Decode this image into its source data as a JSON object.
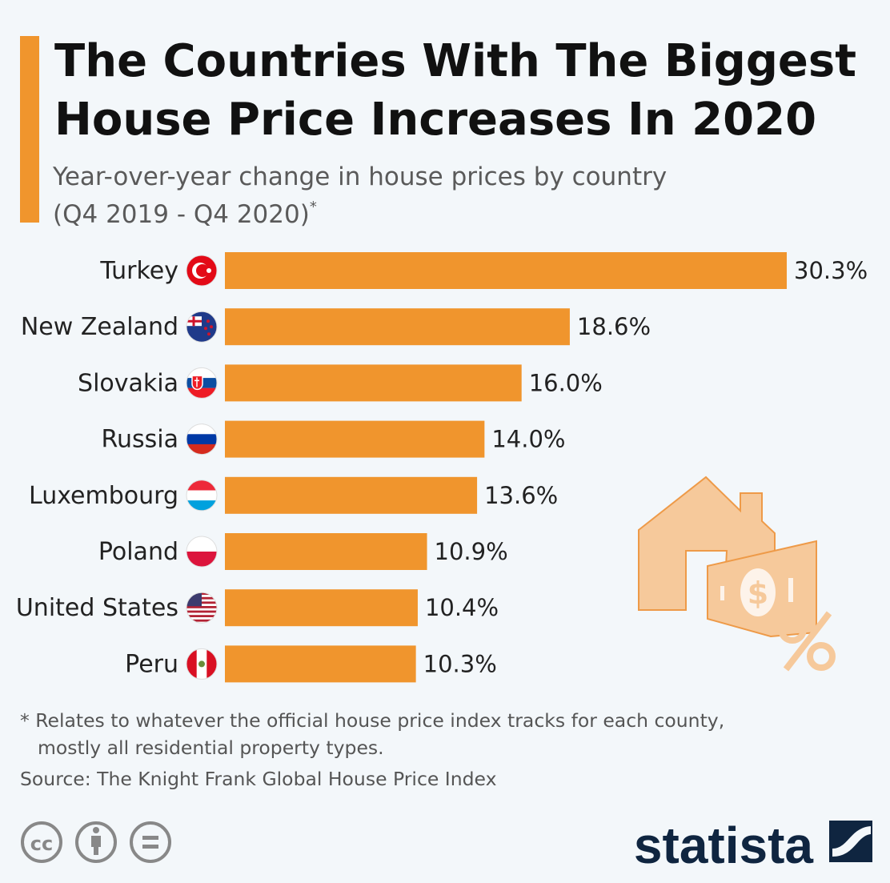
{
  "header": {
    "title_line1": "The Countries With The Biggest",
    "title_line2": "House Price Increases In 2020",
    "subtitle_line1": "Year-over-year change in house prices by country",
    "subtitle_line2": "(Q4 2019 - Q4 2020)",
    "subtitle_mark": "*"
  },
  "colors": {
    "accent": "#f0952d",
    "background": "#f3f7fa",
    "logo": "#0f2540"
  },
  "chart_data": {
    "type": "bar",
    "orientation": "horizontal",
    "title": "The Countries With The Biggest House Price Increases In 2020",
    "ylabel": "",
    "xlabel": "Year-over-year change in house prices (%)",
    "categories": [
      "Turkey",
      "New Zealand",
      "Slovakia",
      "Russia",
      "Luxembourg",
      "Poland",
      "United States",
      "Peru"
    ],
    "values": [
      30.3,
      18.6,
      16.0,
      14.0,
      13.6,
      10.9,
      10.4,
      10.3
    ],
    "value_labels": [
      "30.3%",
      "18.6%",
      "16.0%",
      "14.0%",
      "13.6%",
      "10.9%",
      "10.4%",
      "10.3%"
    ],
    "flag_icons": [
      "flag-turkey",
      "flag-new-zealand",
      "flag-slovakia",
      "flag-russia",
      "flag-luxembourg",
      "flag-poland",
      "flag-united-states",
      "flag-peru"
    ],
    "xlim": [
      0,
      30.3
    ],
    "grid": false
  },
  "footer": {
    "note_line1": "* Relates to whatever the official house price index tracks for each county,",
    "note_line2": "mostly all residential property types.",
    "source": "Source: The Knight Frank Global House Price Index",
    "brand": "statista"
  }
}
